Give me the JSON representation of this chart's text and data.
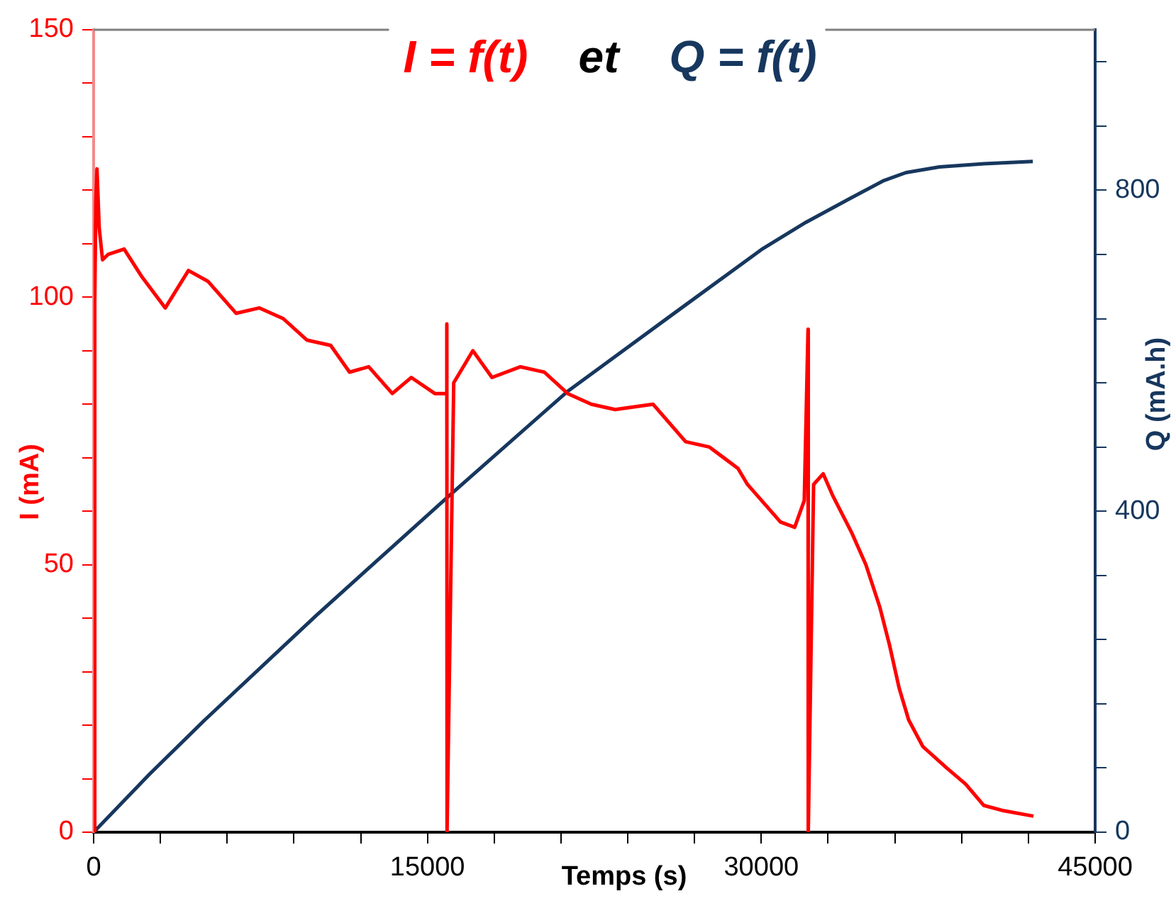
{
  "chart_data": {
    "type": "line",
    "title": "I = f(t) et Q = f(t)",
    "xlabel": "Temps (s)",
    "ylabel": "I (mA)",
    "y2label": "Q (mA.h)",
    "xlim": [
      0,
      45000
    ],
    "xticks": [
      0,
      {
        "value": 3000,
        "label": null
      },
      {
        "value": 6000,
        "label": null
      },
      {
        "value": 9000,
        "label": null
      },
      {
        "value": 12000,
        "label": null
      },
      15000,
      {
        "value": 18000,
        "label": null
      },
      {
        "value": 21000,
        "label": null
      },
      {
        "value": 24000,
        "label": null
      },
      {
        "value": 27000,
        "label": null
      },
      30000,
      {
        "value": 33000,
        "label": null
      },
      {
        "value": 36000,
        "label": null
      },
      {
        "value": 39000,
        "label": null
      },
      {
        "value": 42000,
        "label": null
      },
      45000
    ],
    "ylim": [
      0,
      150
    ],
    "yticks": [
      0,
      {
        "value": 10,
        "label": null
      },
      {
        "value": 20,
        "label": null
      },
      {
        "value": 30,
        "label": null
      },
      {
        "value": 40,
        "label": null
      },
      50,
      {
        "value": 60,
        "label": null
      },
      {
        "value": 70,
        "label": null
      },
      {
        "value": 80,
        "label": null
      },
      {
        "value": 90,
        "label": null
      },
      100,
      {
        "value": 110,
        "label": null
      },
      {
        "value": 120,
        "label": null
      },
      {
        "value": 130,
        "label": null
      },
      {
        "value": 140,
        "label": null
      },
      150
    ],
    "y2lim": [
      0,
      1000
    ],
    "y2ticks": [
      0,
      {
        "value": 80,
        "label": null
      },
      {
        "value": 160,
        "label": null
      },
      {
        "value": 240,
        "label": null
      },
      {
        "value": 320,
        "label": null
      },
      400,
      {
        "value": 480,
        "label": null
      },
      {
        "value": 560,
        "label": null
      },
      {
        "value": 640,
        "label": null
      },
      {
        "value": 720,
        "label": null
      },
      800,
      {
        "value": 880,
        "label": null
      },
      {
        "value": 960,
        "label": null
      }
    ],
    "grid": false,
    "marker": "none",
    "line_style": "solid",
    "series": [
      {
        "color": "#ff0000",
        "x": [
          0,
          50,
          100,
          150,
          250,
          400,
          650,
          1370,
          2140,
          3220,
          4260,
          5130,
          6400,
          7450,
          8520,
          9580,
          10650,
          11500,
          12360,
          13420,
          14270,
          15330,
          15850,
          15870,
          15880,
          16180,
          17040,
          17900,
          19180,
          20250,
          21300,
          22360,
          23430,
          25140,
          26600,
          27670,
          28950,
          29380,
          30860,
          31500,
          31930,
          32100,
          32110,
          32350,
          32780,
          33200,
          34060,
          34700,
          35330,
          35760,
          36190,
          36620,
          37260,
          38330,
          39180,
          40000,
          40900,
          42230
        ],
        "values": [
          0,
          99,
          118,
          124,
          113,
          107,
          108,
          109,
          104,
          98,
          105,
          103,
          97,
          98,
          96,
          92,
          91,
          86,
          87,
          82,
          85,
          82,
          82,
          95,
          0,
          84,
          90,
          85,
          87,
          86,
          82,
          80,
          79,
          80,
          73,
          72,
          68,
          65,
          58,
          57,
          62,
          94,
          0,
          65,
          67,
          63,
          56,
          50,
          42,
          35,
          27,
          21,
          16,
          12,
          9,
          5,
          4,
          3
        ]
      },
      {
        "color": "#17375e",
        "axis": "y2",
        "x": [
          0,
          2500,
          5000,
          10000,
          16000,
          21280,
          26000,
          30000,
          32000,
          34000,
          35500,
          36500,
          38000,
          40000,
          42200
        ],
        "values": [
          0,
          72,
          140,
          270,
          420,
          549,
          645,
          726,
          760,
          790,
          812,
          822,
          829,
          833,
          836
        ]
      }
    ]
  }
}
